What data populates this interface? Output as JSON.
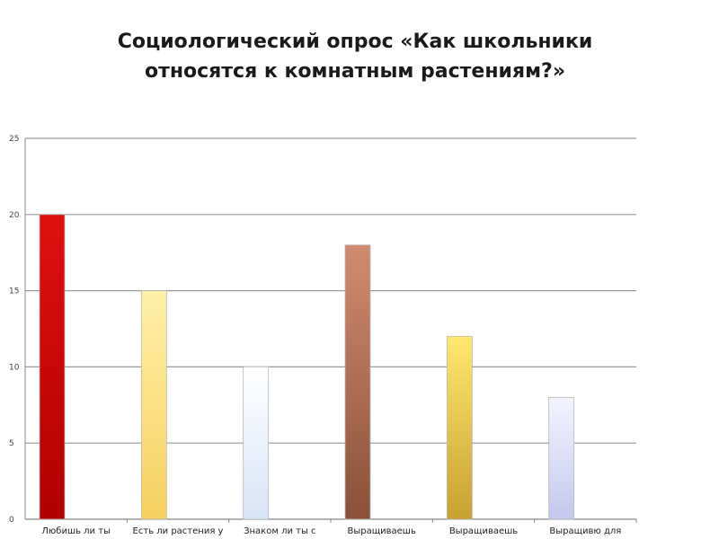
{
  "title": {
    "line1": "Социологический опрос «Как школьники",
    "line2": "относятся к комнатным растениям?»"
  },
  "chart_data": {
    "type": "bar",
    "categories": [
      "Любишь ли ты",
      "Есть ли растения у",
      "Знаком ли ты с",
      "Выращиваешь",
      "Выращиваешь",
      "Выращивю для"
    ],
    "values": [
      20,
      15,
      10,
      18,
      12,
      8
    ],
    "ylim": [
      0,
      25
    ],
    "yticks": [
      0,
      5,
      10,
      15,
      20,
      25
    ],
    "grid": true,
    "bar_colors": [
      [
        "#e01010",
        "#b00000"
      ],
      [
        "#fff0a8",
        "#f5d060"
      ],
      [
        "#ffffff",
        "#d8e4f8"
      ],
      [
        "#d08c70",
        "#8a5038"
      ],
      [
        "#ffe870",
        "#c8a030"
      ],
      [
        "#f4f4ff",
        "#c4c8ee"
      ]
    ]
  }
}
